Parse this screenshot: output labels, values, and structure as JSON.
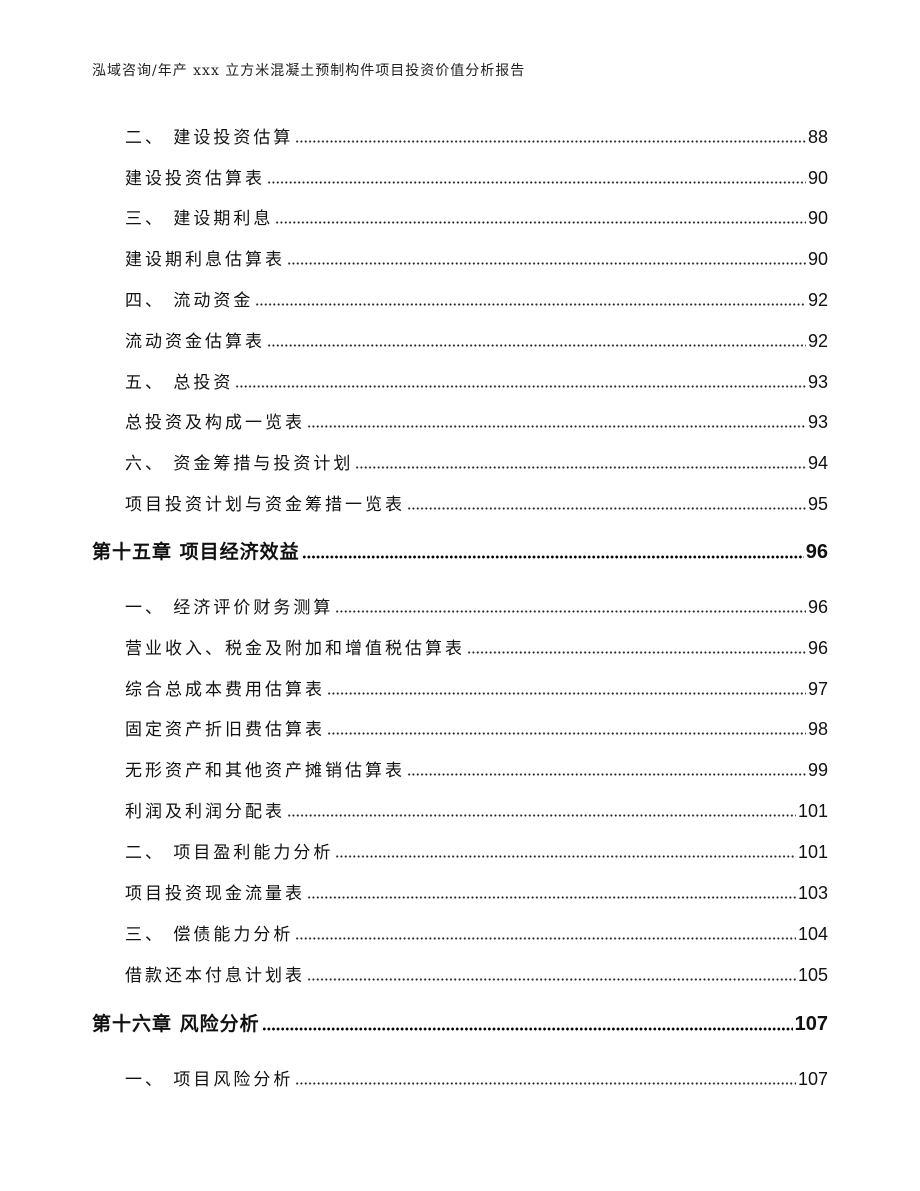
{
  "header": {
    "title": "泓域咨询/年产 xxx 立方米混凝土预制构件项目投资价值分析报告"
  },
  "toc": [
    {
      "text": "二、 建设投资估算",
      "page": "88",
      "level": 2
    },
    {
      "text": "建设投资估算表",
      "page": "90",
      "level": 2
    },
    {
      "text": "三、 建设期利息",
      "page": "90",
      "level": 2
    },
    {
      "text": "建设期利息估算表",
      "page": "90",
      "level": 2
    },
    {
      "text": "四、 流动资金",
      "page": "92",
      "level": 2
    },
    {
      "text": "流动资金估算表",
      "page": "92",
      "level": 2
    },
    {
      "text": "五、 总投资",
      "page": "93",
      "level": 2
    },
    {
      "text": "总投资及构成一览表",
      "page": "93",
      "level": 2
    },
    {
      "text": "六、 资金筹措与投资计划",
      "page": "94",
      "level": 2
    },
    {
      "text": "项目投资计划与资金筹措一览表",
      "page": "95",
      "level": 2
    },
    {
      "text": "第十五章 项目经济效益",
      "page": "96",
      "level": 1
    },
    {
      "text": "一、 经济评价财务测算",
      "page": "96",
      "level": 2
    },
    {
      "text": "营业收入、税金及附加和增值税估算表",
      "page": "96",
      "level": 2
    },
    {
      "text": "综合总成本费用估算表",
      "page": "97",
      "level": 2
    },
    {
      "text": "固定资产折旧费估算表",
      "page": "98",
      "level": 2
    },
    {
      "text": "无形资产和其他资产摊销估算表",
      "page": "99",
      "level": 2
    },
    {
      "text": "利润及利润分配表",
      "page": "101",
      "level": 2
    },
    {
      "text": "二、 项目盈利能力分析",
      "page": "101",
      "level": 2
    },
    {
      "text": "项目投资现金流量表",
      "page": "103",
      "level": 2
    },
    {
      "text": "三、 偿债能力分析",
      "page": "104",
      "level": 2
    },
    {
      "text": "借款还本付息计划表",
      "page": "105",
      "level": 2
    },
    {
      "text": "第十六章 风险分析",
      "page": "107",
      "level": 1
    },
    {
      "text": "一、 项目风险分析",
      "page": "107",
      "level": 2
    }
  ]
}
